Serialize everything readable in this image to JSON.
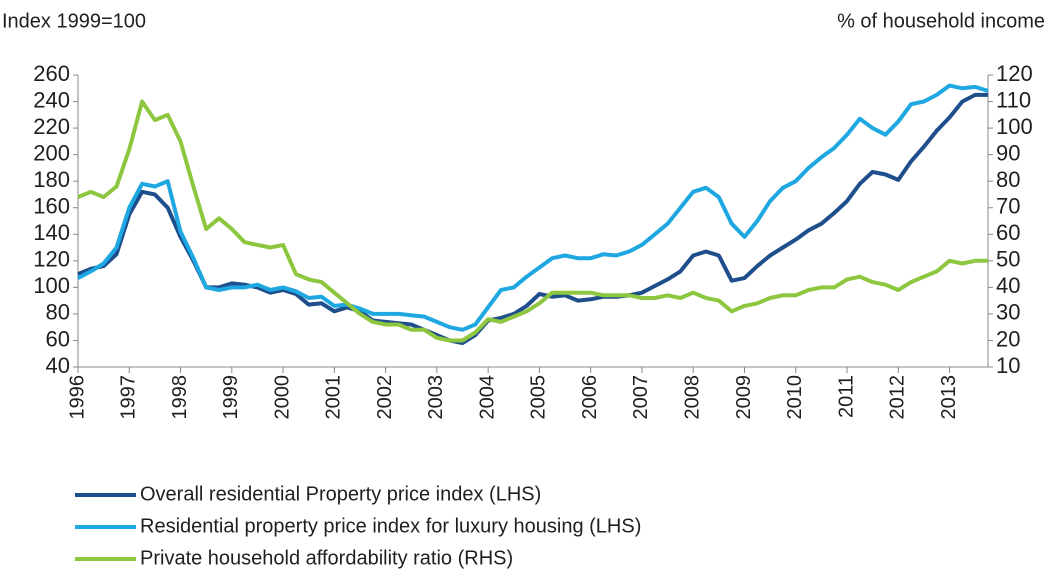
{
  "chart_data": {
    "type": "line",
    "y_label": "Index 1999=100",
    "y2_label": "% of household income",
    "x": [
      1996,
      1996.25,
      1996.5,
      1996.75,
      1997,
      1997.25,
      1997.5,
      1997.75,
      1998,
      1998.25,
      1998.5,
      1998.75,
      1999,
      1999.25,
      1999.5,
      1999.75,
      2000,
      2000.25,
      2000.5,
      2000.75,
      2001,
      2001.25,
      2001.5,
      2001.75,
      2002,
      2002.25,
      2002.5,
      2002.75,
      2003,
      2003.25,
      2003.5,
      2003.75,
      2004,
      2004.25,
      2004.5,
      2004.75,
      2005,
      2005.25,
      2005.5,
      2005.75,
      2006,
      2006.25,
      2006.5,
      2006.75,
      2007,
      2007.25,
      2007.5,
      2007.75,
      2008,
      2008.25,
      2008.5,
      2008.75,
      2009,
      2009.25,
      2009.5,
      2009.75,
      2010,
      2010.25,
      2010.5,
      2010.75,
      2011,
      2011.25,
      2011.5,
      2011.75,
      2012,
      2012.25,
      2012.5,
      2012.75,
      2013,
      2013.25,
      2013.5,
      2013.75
    ],
    "xlim": [
      1996,
      2013.75
    ],
    "xticks": [
      1996,
      1997,
      1998,
      1999,
      2000,
      2001,
      2002,
      2003,
      2004,
      2005,
      2006,
      2007,
      2008,
      2009,
      2010,
      2011,
      2012,
      2013
    ],
    "ylim": [
      40,
      260
    ],
    "yticks": [
      40,
      60,
      80,
      100,
      120,
      140,
      160,
      180,
      200,
      220,
      240,
      260
    ],
    "y2lim": [
      10,
      120
    ],
    "y2ticks": [
      10,
      20,
      30,
      40,
      50,
      60,
      70,
      80,
      90,
      100,
      110,
      120
    ],
    "series": [
      {
        "name": "Overall residential Property price index (LHS)",
        "color": "#1f4e8c",
        "values": [
          110,
          114,
          116,
          125,
          155,
          172,
          170,
          160,
          138,
          120,
          100,
          100,
          103,
          102,
          100,
          96,
          98,
          95,
          87,
          88,
          82,
          85,
          82,
          75,
          74,
          73,
          72,
          68,
          64,
          60,
          58,
          64,
          75,
          77,
          80,
          86,
          95,
          93,
          94,
          90,
          91,
          93,
          93,
          94,
          96,
          101,
          106,
          112,
          124,
          127,
          124,
          105,
          107,
          116,
          124,
          130,
          136,
          143,
          148,
          156,
          165,
          178,
          187,
          185,
          181,
          195,
          206,
          218,
          228,
          240,
          245,
          245
        ]
      },
      {
        "name": "Residential property price index for luxury housing (LHS)",
        "color": "#1ea7e1",
        "values": [
          107,
          112,
          118,
          130,
          160,
          178,
          176,
          180,
          142,
          122,
          100,
          98,
          100,
          100,
          102,
          98,
          100,
          97,
          92,
          93,
          86,
          87,
          84,
          80,
          80,
          80,
          79,
          78,
          74,
          70,
          68,
          72,
          85,
          98,
          100,
          108,
          115,
          122,
          124,
          122,
          122,
          125,
          124,
          127,
          132,
          140,
          148,
          160,
          172,
          175,
          168,
          148,
          138,
          150,
          165,
          175,
          180,
          190,
          198,
          205,
          215,
          227,
          220,
          215,
          225,
          238,
          240,
          245,
          252,
          250,
          251,
          248
        ]
      },
      {
        "name": "Private household affordability ratio (RHS)",
        "color": "#8dc63f",
        "axis": "y2",
        "values": [
          74,
          76,
          74,
          78,
          92,
          110,
          103,
          105,
          95,
          78,
          62,
          66,
          62,
          57,
          56,
          55,
          56,
          45,
          43,
          42,
          38,
          34,
          30,
          27,
          26,
          26,
          24,
          24,
          21,
          20,
          20,
          23,
          28,
          27,
          29,
          31,
          34,
          38,
          38,
          38,
          38,
          37,
          37,
          37,
          36,
          36,
          37,
          36,
          38,
          36,
          35,
          31,
          33,
          34,
          36,
          37,
          37,
          39,
          40,
          40,
          43,
          44,
          42,
          41,
          39,
          42,
          44,
          46,
          50,
          49,
          50,
          50
        ]
      }
    ]
  }
}
